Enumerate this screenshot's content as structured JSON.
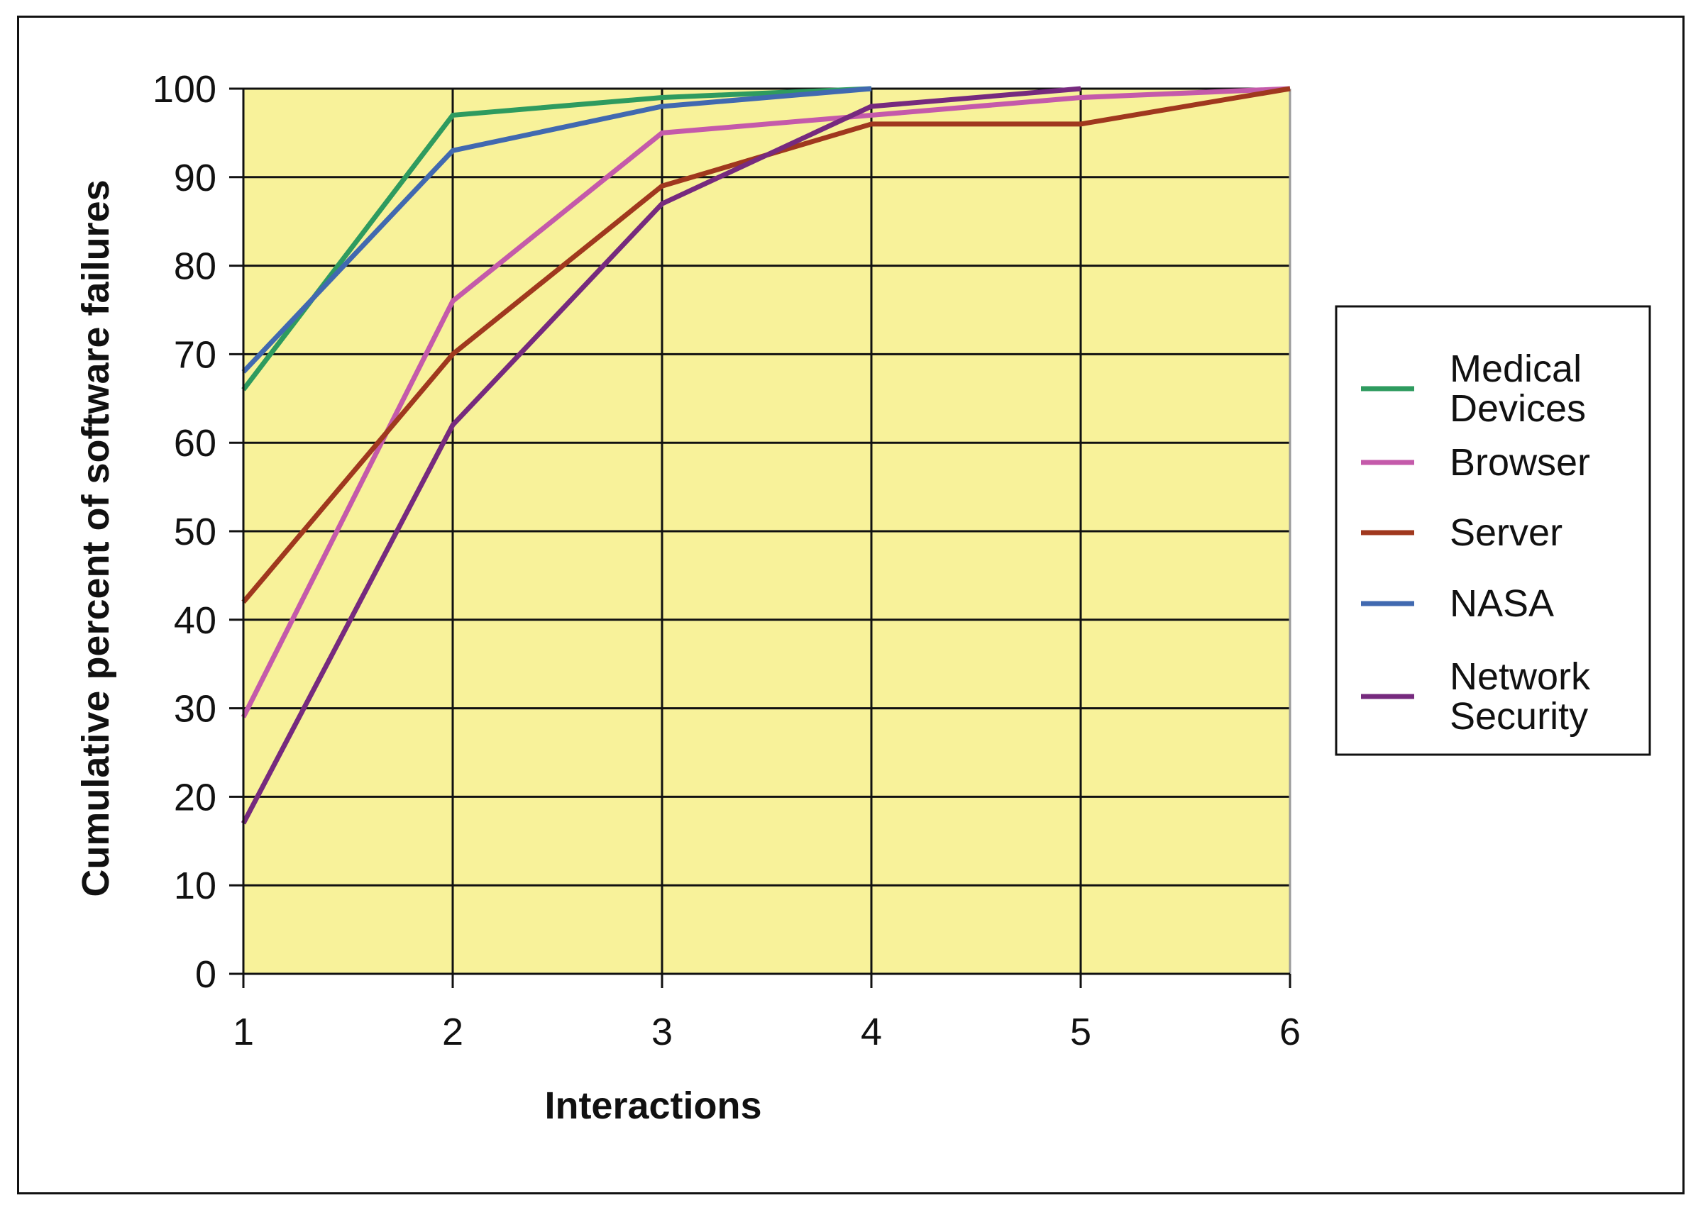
{
  "chart_data": {
    "type": "line",
    "title": "",
    "xlabel": "Interactions",
    "ylabel": "Cumulative percent of software failures",
    "x": [
      1,
      2,
      3,
      4,
      5,
      6
    ],
    "xlim": [
      1,
      6
    ],
    "ylim": [
      0,
      100
    ],
    "yticks": [
      0,
      10,
      20,
      30,
      40,
      50,
      60,
      70,
      80,
      90,
      100
    ],
    "xticks": [
      1,
      2,
      3,
      4,
      5,
      6
    ],
    "grid": true,
    "plot_background": "#F8F29A",
    "legend_position": "right",
    "series": [
      {
        "name": [
          "Medical",
          "Devices"
        ],
        "color": "#2E9B5F",
        "x": [
          1,
          2,
          3,
          4
        ],
        "values": [
          66,
          97,
          99,
          100
        ]
      },
      {
        "name": [
          "Browser"
        ],
        "color": "#C45AAA",
        "x": [
          1,
          2,
          3,
          4,
          5,
          6
        ],
        "values": [
          29,
          76,
          95,
          97,
          99,
          100
        ]
      },
      {
        "name": [
          "Server"
        ],
        "color": "#A0381E",
        "x": [
          1,
          2,
          3,
          4,
          5,
          6
        ],
        "values": [
          42,
          70,
          89,
          96,
          96,
          100
        ]
      },
      {
        "name": [
          "NASA"
        ],
        "color": "#4169B0",
        "x": [
          1,
          2,
          3,
          4
        ],
        "values": [
          68,
          93,
          98,
          100
        ]
      },
      {
        "name": [
          "Network",
          "Security"
        ],
        "color": "#762A7E",
        "x": [
          1,
          2,
          3,
          4,
          5
        ],
        "values": [
          17,
          62,
          87,
          98,
          100
        ]
      }
    ]
  }
}
